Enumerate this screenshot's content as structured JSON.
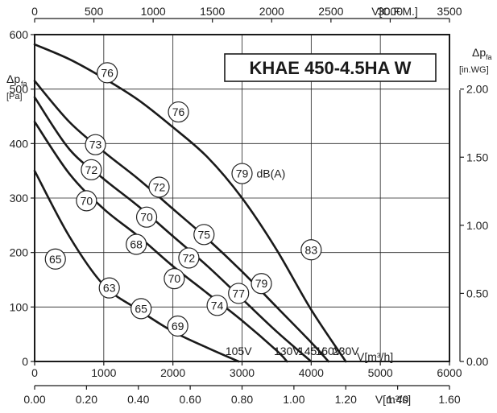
{
  "chart_data": {
    "type": "line",
    "title": "KHAE 450-4.5HA W",
    "x_bottom": {
      "label": "V[m³/h]",
      "range": [
        0,
        6000
      ],
      "ticks": [
        "0",
        "1000",
        "2000",
        "3000",
        "4000",
        "5000",
        "6000"
      ]
    },
    "x_top": {
      "label": "V[C.F.M.]",
      "range": [
        0,
        3500
      ],
      "ticks": [
        "0",
        "500",
        "1000",
        "1500",
        "2000",
        "2500",
        "3000",
        "3500"
      ]
    },
    "x_second": {
      "label": "V[m³/s]",
      "range": [
        0,
        1.6
      ],
      "ticks": [
        "0.00",
        "0.20",
        "0.40",
        "0.60",
        "0.80",
        "1.00",
        "1.20",
        "1.40",
        "1.60"
      ]
    },
    "y_left": {
      "label_main": "Δp",
      "label_sub": "fa",
      "unit": "[Pa]",
      "range": [
        0,
        600
      ],
      "ticks": [
        "0",
        "100",
        "200",
        "300",
        "400",
        "500",
        "600"
      ]
    },
    "y_right": {
      "label_main": "Δp",
      "label_sub": "fa",
      "unit": "[in.WG]",
      "range": [
        0,
        2.4
      ],
      "ticks": [
        "0.00",
        "0.50",
        "1.00",
        "1.50",
        "2.00"
      ]
    },
    "grid": true,
    "series": [
      {
        "name": "230V",
        "x": [
          0,
          500,
          1000,
          1500,
          2000,
          2500,
          3000,
          3500,
          4000,
          4500
        ],
        "y": [
          582,
          555,
          520,
          480,
          430,
          375,
          300,
          205,
          95,
          0
        ]
      },
      {
        "name": "160V",
        "x": [
          0,
          500,
          1000,
          1500,
          2000,
          2500,
          3000,
          3500,
          4000,
          4250
        ],
        "y": [
          515,
          440,
          385,
          335,
          280,
          225,
          165,
          100,
          35,
          0
        ]
      },
      {
        "name": "145V",
        "x": [
          0,
          500,
          1000,
          1500,
          2000,
          2500,
          3000,
          3500,
          4000
        ],
        "y": [
          485,
          390,
          335,
          285,
          230,
          175,
          115,
          55,
          0
        ]
      },
      {
        "name": "130V",
        "x": [
          0,
          500,
          1000,
          1500,
          2000,
          2500,
          3000,
          3500,
          3650
        ],
        "y": [
          440,
          345,
          280,
          230,
          175,
          125,
          75,
          20,
          0
        ]
      },
      {
        "name": "105V",
        "x": [
          0,
          500,
          1000,
          1500,
          2000,
          2500,
          2950
        ],
        "y": [
          350,
          230,
          140,
          95,
          55,
          25,
          0
        ]
      }
    ],
    "sound_markers": [
      {
        "value": "76",
        "x": 1050,
        "y": 530
      },
      {
        "value": "76",
        "x": 2080,
        "y": 458
      },
      {
        "value": "79",
        "x": 3000,
        "y": 345
      },
      {
        "value": "83",
        "x": 4000,
        "y": 205
      },
      {
        "value": "73",
        "x": 880,
        "y": 398
      },
      {
        "value": "72",
        "x": 1800,
        "y": 320
      },
      {
        "value": "75",
        "x": 2450,
        "y": 233
      },
      {
        "value": "79",
        "x": 3280,
        "y": 143
      },
      {
        "value": "72",
        "x": 820,
        "y": 352
      },
      {
        "value": "70",
        "x": 1620,
        "y": 265
      },
      {
        "value": "72",
        "x": 2230,
        "y": 190
      },
      {
        "value": "77",
        "x": 2950,
        "y": 125
      },
      {
        "value": "70",
        "x": 750,
        "y": 295
      },
      {
        "value": "68",
        "x": 1470,
        "y": 215
      },
      {
        "value": "70",
        "x": 2020,
        "y": 152
      },
      {
        "value": "74",
        "x": 2640,
        "y": 103
      },
      {
        "value": "65",
        "x": 300,
        "y": 188
      },
      {
        "value": "63",
        "x": 1080,
        "y": 135
      },
      {
        "value": "65",
        "x": 1540,
        "y": 97
      },
      {
        "value": "69",
        "x": 2070,
        "y": 65
      }
    ],
    "sound_unit_label": "dB(A)"
  }
}
